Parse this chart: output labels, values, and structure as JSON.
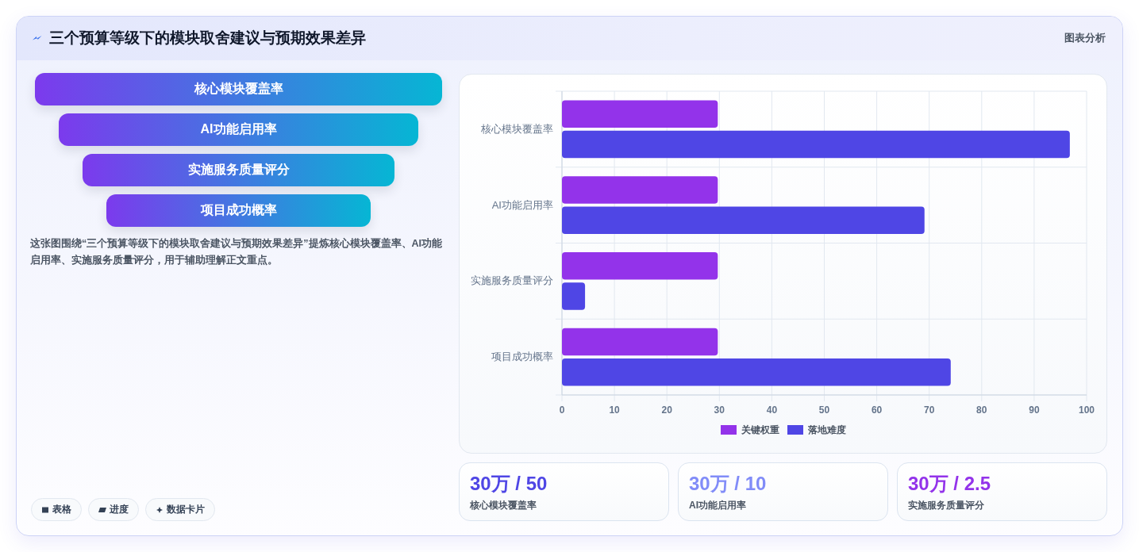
{
  "chart_data": [
    {
      "type": "other",
      "title": "三个预算等级下的模块取舍建议与预期效果差异",
      "categories": [
        "核心模块覆盖率",
        "AI功能启用率",
        "实施服务质量评分",
        "项目成功概率"
      ],
      "annotations": [
        "图表分析",
        "这张图围绕“三个预算等级下的模块取舍建议与预期效果差异”提炼核心模块覆盖率、AI功能启用率、实施服务质量评分，用于辅助理解正文重点。",
        "表格",
        "进度",
        "数据卡片"
      ]
    },
    {
      "type": "bar",
      "orientation": "horizontal",
      "categories": [
        "核心模块覆盖率",
        "AI功能启用率",
        "实施服务质量评分",
        "项目成功概率"
      ],
      "series": [
        {
          "name": "关键权重",
          "color": "#9333ea",
          "values": [
            29.7,
            29.7,
            29.7,
            29.7
          ]
        },
        {
          "name": "落地难度",
          "color": "#4f46e5",
          "values": [
            96.8,
            69.1,
            4.4,
            74.1
          ]
        }
      ],
      "xlim": [
        0,
        100
      ],
      "xticks": [
        0,
        10,
        20,
        30,
        40,
        50,
        60,
        70,
        80,
        90,
        100
      ],
      "grid": true,
      "legend": "bottom"
    },
    {
      "type": "other",
      "categories": [
        "核心模块覆盖率",
        "AI功能启用率",
        "实施服务质量评分"
      ],
      "value_labels": [
        "30万 / 50",
        "30万 / 10",
        "30万 / 2.5"
      ]
    }
  ]
}
